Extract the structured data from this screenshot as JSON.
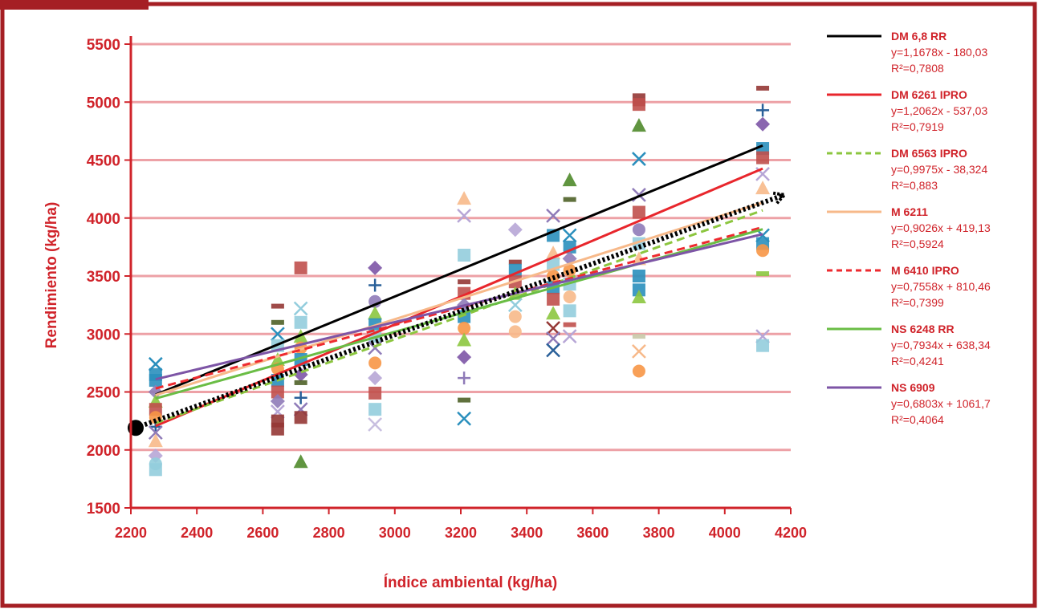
{
  "header_tab": "",
  "colors": {
    "frame": "#a51f24",
    "axis": "#d0232a",
    "text": "#d0232a",
    "grid": "#eda1a6",
    "plot_bg": "#ffffff",
    "page_bg": "#ffffff"
  },
  "chart_data": {
    "type": "scatter",
    "title": "",
    "xlabel": "Índice ambiental (kg/ha)",
    "ylabel": "Rendimiento (kg/ha)",
    "xlim": [
      2200,
      4200
    ],
    "ylim": [
      1500,
      5500
    ],
    "x_ticks": [
      "2200",
      "2400",
      "2600",
      "2800",
      "3000",
      "3200",
      "3400",
      "3600",
      "3800",
      "4000",
      "4200"
    ],
    "y_ticks": [
      "1500",
      "2000",
      "2500",
      "3000",
      "3500",
      "4000",
      "4500",
      "5000",
      "5500"
    ],
    "grid": "horizontal",
    "legend_position": "right",
    "environment_index": [
      2275,
      2645,
      2715,
      2940,
      3210,
      3365,
      3480,
      3530,
      3740,
      4115
    ],
    "trend_lines": [
      {
        "name": "DM 6,8 RR",
        "equation": "y=1,1678x - 180,03",
        "r2": "R²=0,7808",
        "slope": 1.1678,
        "intercept": -180.03,
        "color": "#000000",
        "dash": "solid"
      },
      {
        "name": "DM 6261 IPRO",
        "equation": "y=1,2062x - 537,03",
        "r2": "R²=0,7919",
        "slope": 1.2062,
        "intercept": -537.03,
        "color": "#e8262c",
        "dash": "solid"
      },
      {
        "name": "DM 6563 IPRO",
        "equation": "y=0,9975x - 38,324",
        "r2": "R²=0,883",
        "slope": 0.9975,
        "intercept": -38.324,
        "color": "#8cc63f",
        "dash": "dashed"
      },
      {
        "name": "M 6211",
        "equation": "y=0,9026x + 419,13",
        "r2": "R²=0,5924",
        "slope": 0.9026,
        "intercept": 419.13,
        "color": "#f7b98a",
        "dash": "solid"
      },
      {
        "name": "M 6410 IPRO",
        "equation": "y=0,7558x + 810,46",
        "r2": "R²=0,7399",
        "slope": 0.7558,
        "intercept": 810.46,
        "color": "#ee2a2f",
        "dash": "dashed"
      },
      {
        "name": "NS 6248 RR",
        "equation": "y=0,7934x + 638,34",
        "r2": "R²=0,4241",
        "slope": 0.7934,
        "intercept": 638.34,
        "color": "#6abd45",
        "dash": "solid"
      },
      {
        "name": "NS 6909",
        "equation": "y=0,6803x + 1061,7",
        "r2": "R²=0,4064",
        "slope": 0.6803,
        "intercept": 1061.7,
        "color": "#7d55a6",
        "dash": "solid"
      }
    ],
    "reference_line": {
      "from": [
        2200,
        2190
      ],
      "to": [
        4200,
        4200
      ],
      "style": "dotted-arrow",
      "color": "#000000"
    },
    "points": [
      {
        "x": 2275,
        "y": 2650,
        "m": "square",
        "c": "#2a8fbd"
      },
      {
        "x": 2275,
        "y": 2740,
        "m": "cross",
        "c": "#2a8fbd"
      },
      {
        "x": 2275,
        "y": 2600,
        "m": "square",
        "c": "#2a8fbd"
      },
      {
        "x": 2275,
        "y": 2500,
        "m": "diamond",
        "c": "#8f7bb8"
      },
      {
        "x": 2275,
        "y": 2420,
        "m": "triangle",
        "c": "#8cc63f"
      },
      {
        "x": 2275,
        "y": 2350,
        "m": "square",
        "c": "#c0504d"
      },
      {
        "x": 2275,
        "y": 2280,
        "m": "circle",
        "c": "#f79646"
      },
      {
        "x": 2275,
        "y": 2200,
        "m": "plus",
        "c": "#2a6099"
      },
      {
        "x": 2275,
        "y": 2150,
        "m": "cross",
        "c": "#8f7bb8"
      },
      {
        "x": 2275,
        "y": 2080,
        "m": "triangle",
        "c": "#f7b98a"
      },
      {
        "x": 2275,
        "y": 1950,
        "m": "diamond",
        "c": "#b7a6d6"
      },
      {
        "x": 2275,
        "y": 1880,
        "m": "circle",
        "c": "#92cddc"
      },
      {
        "x": 2275,
        "y": 1830,
        "m": "square",
        "c": "#93cddd"
      },
      {
        "x": 2645,
        "y": 3240,
        "m": "dash",
        "c": "#953735"
      },
      {
        "x": 2645,
        "y": 3100,
        "m": "dash",
        "c": "#4f6228"
      },
      {
        "x": 2645,
        "y": 3000,
        "m": "cross",
        "c": "#2a8fbd"
      },
      {
        "x": 2645,
        "y": 2900,
        "m": "square",
        "c": "#93cddd"
      },
      {
        "x": 2645,
        "y": 2780,
        "m": "triangle",
        "c": "#8cc63f"
      },
      {
        "x": 2645,
        "y": 2700,
        "m": "circle",
        "c": "#f79646"
      },
      {
        "x": 2645,
        "y": 2600,
        "m": "square",
        "c": "#2a8fbd"
      },
      {
        "x": 2645,
        "y": 2500,
        "m": "square",
        "c": "#c0504d"
      },
      {
        "x": 2645,
        "y": 2420,
        "m": "diamond",
        "c": "#8f7bb8"
      },
      {
        "x": 2645,
        "y": 2330,
        "m": "cross",
        "c": "#b7a6d6"
      },
      {
        "x": 2645,
        "y": 2250,
        "m": "square",
        "c": "#953735"
      },
      {
        "x": 2645,
        "y": 2180,
        "m": "square",
        "c": "#953735"
      },
      {
        "x": 2715,
        "y": 3570,
        "m": "square",
        "c": "#c0504d"
      },
      {
        "x": 2715,
        "y": 3220,
        "m": "cross",
        "c": "#93cddd"
      },
      {
        "x": 2715,
        "y": 3100,
        "m": "square",
        "c": "#93cddd"
      },
      {
        "x": 2715,
        "y": 2980,
        "m": "triangle",
        "c": "#8cc63f"
      },
      {
        "x": 2715,
        "y": 2880,
        "m": "circle",
        "c": "#f79646"
      },
      {
        "x": 2715,
        "y": 2780,
        "m": "square",
        "c": "#2a8fbd"
      },
      {
        "x": 2715,
        "y": 2650,
        "m": "diamond",
        "c": "#7d55a6"
      },
      {
        "x": 2715,
        "y": 2580,
        "m": "dash",
        "c": "#4f6228"
      },
      {
        "x": 2715,
        "y": 2450,
        "m": "plus",
        "c": "#2a6099"
      },
      {
        "x": 2715,
        "y": 2350,
        "m": "cross",
        "c": "#8f7bb8"
      },
      {
        "x": 2715,
        "y": 2280,
        "m": "square",
        "c": "#953735"
      },
      {
        "x": 2715,
        "y": 1900,
        "m": "triangle",
        "c": "#4f8a2b"
      },
      {
        "x": 2940,
        "y": 3570,
        "m": "diamond",
        "c": "#7d55a6"
      },
      {
        "x": 2940,
        "y": 3420,
        "m": "plus",
        "c": "#2a6099"
      },
      {
        "x": 2940,
        "y": 3280,
        "m": "circle",
        "c": "#8f7bb8"
      },
      {
        "x": 2940,
        "y": 3180,
        "m": "triangle",
        "c": "#8cc63f"
      },
      {
        "x": 2940,
        "y": 3080,
        "m": "square",
        "c": "#2a8fbd"
      },
      {
        "x": 2940,
        "y": 2980,
        "m": "square",
        "c": "#93cddd"
      },
      {
        "x": 2940,
        "y": 2880,
        "m": "cross",
        "c": "#8f7bb8"
      },
      {
        "x": 2940,
        "y": 2750,
        "m": "circle",
        "c": "#f79646"
      },
      {
        "x": 2940,
        "y": 2620,
        "m": "diamond",
        "c": "#b7a6d6"
      },
      {
        "x": 2940,
        "y": 2490,
        "m": "square",
        "c": "#c0504d"
      },
      {
        "x": 2940,
        "y": 2350,
        "m": "square",
        "c": "#93cddd"
      },
      {
        "x": 2940,
        "y": 2220,
        "m": "cross",
        "c": "#c8bfe0"
      },
      {
        "x": 3210,
        "y": 4170,
        "m": "triangle",
        "c": "#f7b98a"
      },
      {
        "x": 3210,
        "y": 4020,
        "m": "cross",
        "c": "#b7a6d6"
      },
      {
        "x": 3210,
        "y": 3680,
        "m": "square",
        "c": "#93cddd"
      },
      {
        "x": 3210,
        "y": 3450,
        "m": "dash",
        "c": "#953735"
      },
      {
        "x": 3210,
        "y": 3350,
        "m": "square",
        "c": "#c0504d"
      },
      {
        "x": 3210,
        "y": 3250,
        "m": "diamond",
        "c": "#8f7bb8"
      },
      {
        "x": 3210,
        "y": 3150,
        "m": "square",
        "c": "#2a8fbd"
      },
      {
        "x": 3210,
        "y": 3050,
        "m": "circle",
        "c": "#f79646"
      },
      {
        "x": 3210,
        "y": 2950,
        "m": "triangle",
        "c": "#8cc63f"
      },
      {
        "x": 3210,
        "y": 2800,
        "m": "diamond",
        "c": "#7d55a6"
      },
      {
        "x": 3210,
        "y": 2620,
        "m": "plus",
        "c": "#8f7bb8"
      },
      {
        "x": 3210,
        "y": 2430,
        "m": "dash",
        "c": "#4f6228"
      },
      {
        "x": 3210,
        "y": 2270,
        "m": "cross",
        "c": "#2a8fbd"
      },
      {
        "x": 3365,
        "y": 3900,
        "m": "diamond",
        "c": "#b7a6d6"
      },
      {
        "x": 3365,
        "y": 3620,
        "m": "dash",
        "c": "#953735"
      },
      {
        "x": 3365,
        "y": 3550,
        "m": "square",
        "c": "#2a8fbd"
      },
      {
        "x": 3365,
        "y": 3450,
        "m": "square",
        "c": "#c0504d"
      },
      {
        "x": 3365,
        "y": 3350,
        "m": "triangle",
        "c": "#8cc63f"
      },
      {
        "x": 3365,
        "y": 3250,
        "m": "cross",
        "c": "#93cddd"
      },
      {
        "x": 3365,
        "y": 3150,
        "m": "circle",
        "c": "#f7b98a"
      },
      {
        "x": 3365,
        "y": 3020,
        "m": "circle",
        "c": "#f7b98a"
      },
      {
        "x": 3480,
        "y": 4020,
        "m": "cross",
        "c": "#8f7bb8"
      },
      {
        "x": 3480,
        "y": 3850,
        "m": "square",
        "c": "#2a8fbd"
      },
      {
        "x": 3480,
        "y": 3700,
        "m": "triangle",
        "c": "#f7b98a"
      },
      {
        "x": 3480,
        "y": 3600,
        "m": "square",
        "c": "#93cddd"
      },
      {
        "x": 3480,
        "y": 3500,
        "m": "circle",
        "c": "#f79646"
      },
      {
        "x": 3480,
        "y": 3400,
        "m": "square",
        "c": "#2a8fbd"
      },
      {
        "x": 3480,
        "y": 3300,
        "m": "square",
        "c": "#c0504d"
      },
      {
        "x": 3480,
        "y": 3180,
        "m": "triangle",
        "c": "#8cc63f"
      },
      {
        "x": 3480,
        "y": 3050,
        "m": "cross",
        "c": "#953735"
      },
      {
        "x": 3480,
        "y": 2960,
        "m": "cross",
        "c": "#8f7bb8"
      },
      {
        "x": 3480,
        "y": 2860,
        "m": "cross",
        "c": "#2a6099"
      },
      {
        "x": 3530,
        "y": 4330,
        "m": "triangle",
        "c": "#4f8a2b"
      },
      {
        "x": 3530,
        "y": 4160,
        "m": "dash",
        "c": "#4f6228"
      },
      {
        "x": 3530,
        "y": 3850,
        "m": "cross",
        "c": "#2a8fbd"
      },
      {
        "x": 3530,
        "y": 3750,
        "m": "square",
        "c": "#2a8fbd"
      },
      {
        "x": 3530,
        "y": 3650,
        "m": "diamond",
        "c": "#8f7bb8"
      },
      {
        "x": 3530,
        "y": 3550,
        "m": "circle",
        "c": "#f79646"
      },
      {
        "x": 3530,
        "y": 3430,
        "m": "square",
        "c": "#93cddd"
      },
      {
        "x": 3530,
        "y": 3320,
        "m": "circle",
        "c": "#f7b98a"
      },
      {
        "x": 3530,
        "y": 3200,
        "m": "square",
        "c": "#93cddd"
      },
      {
        "x": 3530,
        "y": 3080,
        "m": "dash",
        "c": "#c0504d"
      },
      {
        "x": 3530,
        "y": 2980,
        "m": "cross",
        "c": "#b7a6d6"
      },
      {
        "x": 3740,
        "y": 5020,
        "m": "square",
        "c": "#953735"
      },
      {
        "x": 3740,
        "y": 4980,
        "m": "square",
        "c": "#c0504d"
      },
      {
        "x": 3740,
        "y": 4800,
        "m": "triangle",
        "c": "#4f8a2b"
      },
      {
        "x": 3740,
        "y": 4510,
        "m": "cross",
        "c": "#2a8fbd"
      },
      {
        "x": 3740,
        "y": 4200,
        "m": "cross",
        "c": "#8f7bb8"
      },
      {
        "x": 3740,
        "y": 4050,
        "m": "square",
        "c": "#c0504d"
      },
      {
        "x": 3740,
        "y": 3900,
        "m": "circle",
        "c": "#8f7bb8"
      },
      {
        "x": 3740,
        "y": 3780,
        "m": "square",
        "c": "#93cddd"
      },
      {
        "x": 3740,
        "y": 3650,
        "m": "triangle",
        "c": "#f7b98a"
      },
      {
        "x": 3740,
        "y": 3500,
        "m": "square",
        "c": "#2a8fbd"
      },
      {
        "x": 3740,
        "y": 3380,
        "m": "square",
        "c": "#2a8fbd"
      },
      {
        "x": 3740,
        "y": 3320,
        "m": "triangle",
        "c": "#8cc63f"
      },
      {
        "x": 3740,
        "y": 2980,
        "m": "dash",
        "c": "#c9c9a8"
      },
      {
        "x": 3740,
        "y": 2850,
        "m": "cross",
        "c": "#f7b98a"
      },
      {
        "x": 3740,
        "y": 2680,
        "m": "circle",
        "c": "#f79646"
      },
      {
        "x": 4115,
        "y": 5120,
        "m": "dash",
        "c": "#953735"
      },
      {
        "x": 4115,
        "y": 4930,
        "m": "plus",
        "c": "#2a6099"
      },
      {
        "x": 4115,
        "y": 4810,
        "m": "diamond",
        "c": "#7d55a6"
      },
      {
        "x": 4115,
        "y": 4600,
        "m": "square",
        "c": "#2a8fbd"
      },
      {
        "x": 4115,
        "y": 4520,
        "m": "square",
        "c": "#c0504d"
      },
      {
        "x": 4115,
        "y": 4380,
        "m": "cross",
        "c": "#b7a6d6"
      },
      {
        "x": 4115,
        "y": 4260,
        "m": "triangle",
        "c": "#f7b98a"
      },
      {
        "x": 4115,
        "y": 3850,
        "m": "cross",
        "c": "#2a8fbd"
      },
      {
        "x": 4115,
        "y": 3780,
        "m": "square",
        "c": "#2a8fbd"
      },
      {
        "x": 4115,
        "y": 3720,
        "m": "circle",
        "c": "#f79646"
      },
      {
        "x": 4115,
        "y": 3520,
        "m": "dash",
        "c": "#8cc63f"
      },
      {
        "x": 4115,
        "y": 2980,
        "m": "cross",
        "c": "#b7a6d6"
      },
      {
        "x": 4115,
        "y": 2900,
        "m": "square",
        "c": "#93cddd"
      }
    ]
  }
}
